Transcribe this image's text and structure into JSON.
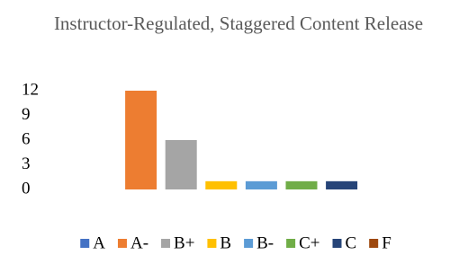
{
  "chart_data": {
    "type": "bar",
    "title": "Instructor-Regulated, Staggered Content Release",
    "categories": [
      null
    ],
    "series": [
      {
        "name": "A",
        "color": "#4472c4",
        "values": [
          0
        ]
      },
      {
        "name": "A-",
        "color": "#ed7d31",
        "values": [
          12
        ]
      },
      {
        "name": "B+",
        "color": "#a5a5a5",
        "values": [
          6
        ]
      },
      {
        "name": "B",
        "color": "#ffc000",
        "values": [
          1
        ]
      },
      {
        "name": "B-",
        "color": "#5b9bd5",
        "values": [
          1
        ]
      },
      {
        "name": "C+",
        "color": "#70ad47",
        "values": [
          1
        ]
      },
      {
        "name": "C",
        "color": "#264478",
        "values": [
          1
        ]
      },
      {
        "name": "F",
        "color": "#9e480e",
        "values": [
          0
        ]
      }
    ],
    "ylim": [
      0,
      12
    ],
    "yticks": [
      0,
      3,
      6,
      9,
      12
    ],
    "grid": false,
    "legend": "bottom"
  }
}
